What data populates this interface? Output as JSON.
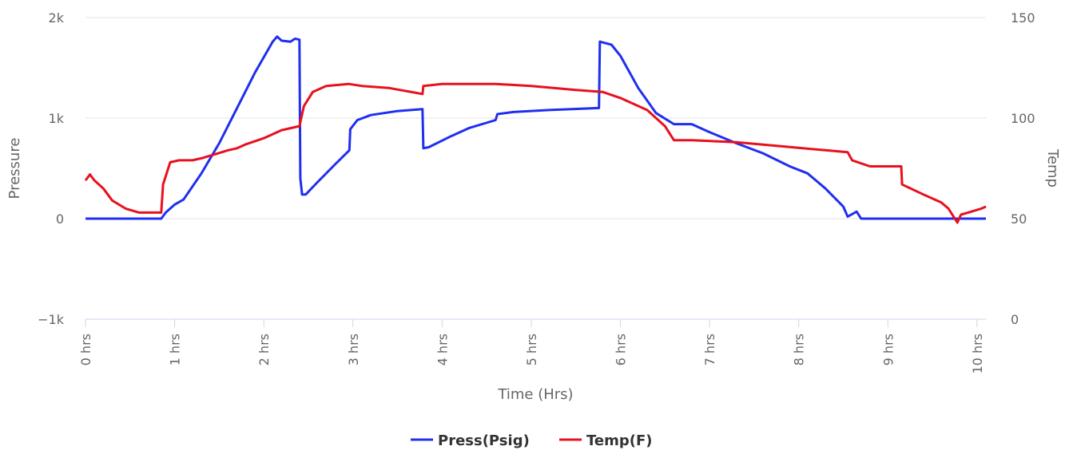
{
  "chart_data": {
    "type": "line",
    "xlabel": "Time (Hrs)",
    "y_left_label": "Pressure",
    "y_right_label": "Temp",
    "xlim": [
      0,
      10.1
    ],
    "x_ticks": [
      0,
      1,
      2,
      3,
      4,
      5,
      6,
      7,
      8,
      9,
      10
    ],
    "x_tick_labels": [
      "0 hrs",
      "1 hrs",
      "2 hrs",
      "3 hrs",
      "4 hrs",
      "5 hrs",
      "6 hrs",
      "7 hrs",
      "8 hrs",
      "9 hrs",
      "10 hrs"
    ],
    "y_left_lim": [
      -1000,
      2000
    ],
    "y_left_ticks": [
      -1000,
      0,
      1000,
      2000
    ],
    "y_left_tick_labels": [
      "−1k",
      "0",
      "1k",
      "2k"
    ],
    "y_right_lim": [
      0,
      150
    ],
    "y_right_ticks": [
      0,
      50,
      100,
      150
    ],
    "y_right_tick_labels": [
      "0",
      "50",
      "100",
      "150"
    ],
    "grid": true,
    "legend_position": "bottom-center",
    "series": [
      {
        "name": "Press(Psig)",
        "axis": "left",
        "color": "#1f2ff0",
        "points": [
          [
            0,
            0
          ],
          [
            0.85,
            0
          ],
          [
            0.9,
            60
          ],
          [
            1.0,
            140
          ],
          [
            1.1,
            190
          ],
          [
            1.3,
            450
          ],
          [
            1.5,
            750
          ],
          [
            1.7,
            1100
          ],
          [
            1.9,
            1450
          ],
          [
            2.1,
            1760
          ],
          [
            2.15,
            1810
          ],
          [
            2.2,
            1770
          ],
          [
            2.3,
            1760
          ],
          [
            2.35,
            1790
          ],
          [
            2.4,
            1780
          ],
          [
            2.41,
            400
          ],
          [
            2.43,
            240
          ],
          [
            2.47,
            240
          ],
          [
            2.6,
            360
          ],
          [
            2.8,
            540
          ],
          [
            2.96,
            680
          ],
          [
            2.97,
            890
          ],
          [
            3.05,
            980
          ],
          [
            3.2,
            1030
          ],
          [
            3.5,
            1070
          ],
          [
            3.78,
            1090
          ],
          [
            3.79,
            700
          ],
          [
            3.85,
            710
          ],
          [
            4.1,
            820
          ],
          [
            4.3,
            900
          ],
          [
            4.6,
            980
          ],
          [
            4.62,
            1040
          ],
          [
            4.8,
            1060
          ],
          [
            5.2,
            1080
          ],
          [
            5.76,
            1100
          ],
          [
            5.77,
            1760
          ],
          [
            5.9,
            1730
          ],
          [
            6.0,
            1620
          ],
          [
            6.2,
            1300
          ],
          [
            6.4,
            1050
          ],
          [
            6.6,
            940
          ],
          [
            6.8,
            940
          ],
          [
            7.0,
            860
          ],
          [
            7.3,
            750
          ],
          [
            7.6,
            650
          ],
          [
            7.9,
            520
          ],
          [
            8.1,
            450
          ],
          [
            8.3,
            300
          ],
          [
            8.5,
            120
          ],
          [
            8.55,
            20
          ],
          [
            8.65,
            70
          ],
          [
            8.7,
            0
          ],
          [
            10.1,
            0
          ]
        ]
      },
      {
        "name": "Temp(F)",
        "axis": "right",
        "color": "#e8101e",
        "points": [
          [
            0,
            69
          ],
          [
            0.05,
            72
          ],
          [
            0.1,
            69
          ],
          [
            0.2,
            65
          ],
          [
            0.3,
            59
          ],
          [
            0.45,
            55
          ],
          [
            0.6,
            53
          ],
          [
            0.85,
            53
          ],
          [
            0.87,
            67
          ],
          [
            0.95,
            78
          ],
          [
            1.05,
            79
          ],
          [
            1.2,
            79
          ],
          [
            1.3,
            80
          ],
          [
            1.45,
            82
          ],
          [
            1.6,
            84
          ],
          [
            1.7,
            85
          ],
          [
            1.8,
            87
          ],
          [
            2.0,
            90
          ],
          [
            2.2,
            94
          ],
          [
            2.4,
            96
          ],
          [
            2.45,
            106
          ],
          [
            2.55,
            113
          ],
          [
            2.7,
            116
          ],
          [
            2.95,
            117
          ],
          [
            3.1,
            116
          ],
          [
            3.4,
            115
          ],
          [
            3.78,
            112
          ],
          [
            3.79,
            116
          ],
          [
            4.0,
            117
          ],
          [
            4.6,
            117
          ],
          [
            5.0,
            116
          ],
          [
            5.5,
            114
          ],
          [
            5.8,
            113
          ],
          [
            6.0,
            110
          ],
          [
            6.3,
            104
          ],
          [
            6.5,
            96
          ],
          [
            6.6,
            89
          ],
          [
            6.8,
            89
          ],
          [
            7.3,
            88
          ],
          [
            7.8,
            86
          ],
          [
            8.3,
            84
          ],
          [
            8.55,
            83
          ],
          [
            8.6,
            79
          ],
          [
            8.8,
            76
          ],
          [
            9.15,
            76
          ],
          [
            9.16,
            67
          ],
          [
            9.4,
            62
          ],
          [
            9.6,
            58
          ],
          [
            9.68,
            55
          ],
          [
            9.78,
            48
          ],
          [
            9.82,
            52
          ],
          [
            9.9,
            53
          ],
          [
            10.05,
            55
          ],
          [
            10.1,
            56
          ]
        ]
      }
    ]
  }
}
